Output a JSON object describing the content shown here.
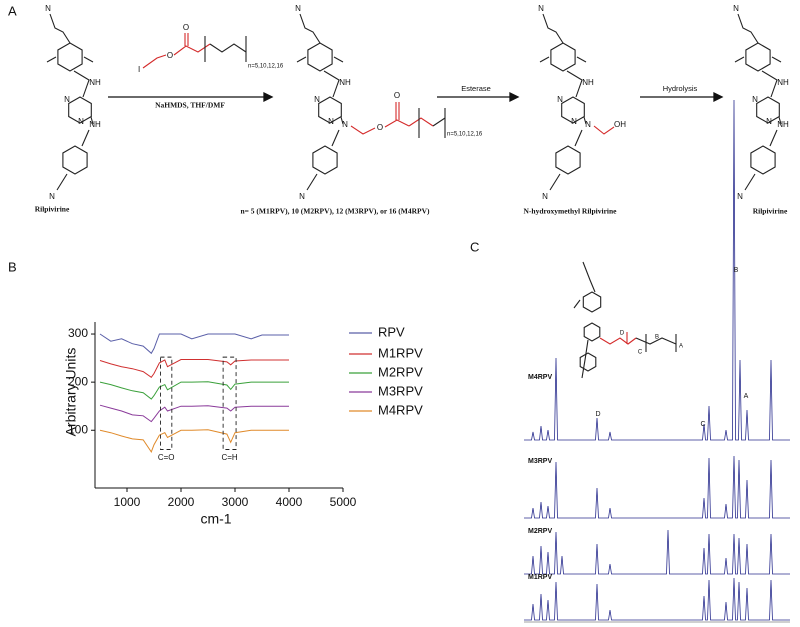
{
  "panels": [
    "A",
    "B",
    "C"
  ],
  "scheme": {
    "reagent": {
      "atoms": [
        "I",
        "O",
        "O"
      ],
      "repeat": "n=5,10,12,16"
    },
    "conditions": [
      "NaHMDS, THF/DMF",
      "Esterase",
      "Hydrolysis"
    ],
    "molecules": [
      {
        "atoms": [
          "N",
          "NH",
          "N",
          "N",
          "NH",
          "N"
        ],
        "caption": "Rilpivirine"
      },
      {
        "atoms": [
          "N",
          "NH",
          "N",
          "N",
          "N",
          "N",
          "O",
          "O"
        ],
        "repeat": "n=5,10,12,16",
        "caption": "n= 5 (M1RPV), 10 (M2RPV), 12 (M3RPV), or 16 (M4RPV)"
      },
      {
        "atoms": [
          "N",
          "NH",
          "N",
          "N",
          "N",
          "N",
          "OH"
        ],
        "caption": "N-hydroxymethyl Rilpivirine"
      },
      {
        "atoms": [
          "N",
          "NH",
          "N",
          "N",
          "NH",
          "N"
        ],
        "caption": "Rilpivirine"
      }
    ]
  },
  "chart_data": {
    "type": "line",
    "x_label": "cm-1",
    "y_label": "Arbitrary Units",
    "x": [
      500,
      700,
      900,
      1100,
      1300,
      1450,
      1500,
      1600,
      1700,
      1750,
      2000,
      2200,
      2500,
      2850,
      2920,
      3000,
      3300,
      3500,
      4000
    ],
    "series": [
      {
        "name": "RPV",
        "color": "#5a5fa8",
        "values": [
          300,
          285,
          290,
          280,
          275,
          260,
          270,
          300,
          300,
          300,
          300,
          290,
          300,
          300,
          300,
          300,
          290,
          298,
          298
        ]
      },
      {
        "name": "M1RPV",
        "color": "#d03030",
        "values": [
          245,
          238,
          232,
          228,
          222,
          210,
          218,
          240,
          246,
          232,
          247,
          247,
          247,
          242,
          236,
          244,
          246,
          246,
          246
        ]
      },
      {
        "name": "M2RPV",
        "color": "#3aa03a",
        "values": [
          200,
          195,
          188,
          182,
          178,
          165,
          172,
          190,
          195,
          184,
          200,
          200,
          201,
          194,
          185,
          196,
          200,
          200,
          200
        ]
      },
      {
        "name": "M3RPV",
        "color": "#8a3a9a",
        "values": [
          152,
          146,
          140,
          132,
          130,
          118,
          125,
          140,
          148,
          140,
          150,
          150,
          151,
          146,
          140,
          148,
          150,
          150,
          150
        ]
      },
      {
        "name": "M4RPV",
        "color": "#e08a2a",
        "values": [
          100,
          95,
          88,
          82,
          80,
          55,
          70,
          90,
          95,
          85,
          100,
          100,
          101,
          92,
          75,
          95,
          100,
          100,
          100
        ]
      }
    ],
    "xlim": [
      500,
      5000
    ],
    "ylim": [
      -20,
      325
    ],
    "xticks": [
      1000,
      2000,
      3000,
      4000,
      5000
    ],
    "yticks": [
      100,
      200,
      300
    ],
    "annotations": [
      "C=O",
      "C=H"
    ],
    "legend": "right"
  },
  "nmr": {
    "spectra": [
      "M4RPV",
      "M3RPV",
      "M2RPV",
      "M1RPV"
    ],
    "peak_labels": [
      "D",
      "C",
      "B",
      "A"
    ],
    "inset_labels": [
      "D",
      "C",
      "B",
      "A"
    ]
  }
}
